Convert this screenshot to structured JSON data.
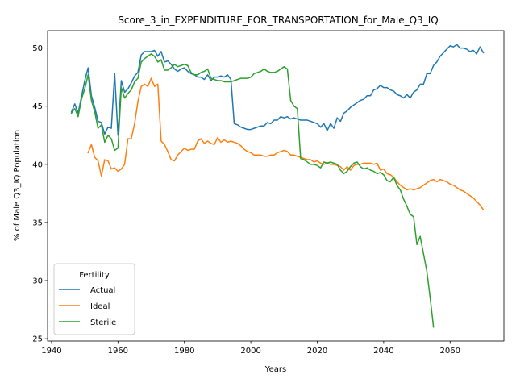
{
  "chart_data": {
    "type": "line",
    "title": "Score_3_in_EXPENDITURE_FOR_TRANSPORTATION_for_Male_Q3_IQ",
    "xlabel": "Years",
    "ylabel": "% of Male Q3_IQ Population",
    "xlim": [
      1938.8,
      2076.2
    ],
    "ylim": [
      24.8,
      51.5
    ],
    "xticks": [
      1940,
      1960,
      1980,
      2000,
      2020,
      2040,
      2060
    ],
    "yticks": [
      25,
      30,
      35,
      40,
      45,
      50
    ],
    "grid": false,
    "legend": {
      "title": "Fertility",
      "position": "lower-left"
    },
    "series": [
      {
        "name": "Actual",
        "color": "#1f77b4",
        "x": [
          1946,
          1947,
          1948,
          1949,
          1950,
          1951,
          1952,
          1953,
          1954,
          1955,
          1956,
          1957,
          1958,
          1959,
          1960,
          1961,
          1962,
          1963,
          1964,
          1965,
          1966,
          1967,
          1968,
          1969,
          1970,
          1971,
          1972,
          1973,
          1974,
          1975,
          1976,
          1977,
          1978,
          1979,
          1980,
          1981,
          1982,
          1983,
          1984,
          1985,
          1986,
          1987,
          1988,
          1989,
          1990,
          1991,
          1992,
          1993,
          1994,
          1995,
          1996,
          1997,
          1998,
          1999,
          2000,
          2001,
          2002,
          2003,
          2004,
          2005,
          2006,
          2007,
          2008,
          2009,
          2010,
          2011,
          2012,
          2013,
          2014,
          2015,
          2016,
          2017,
          2018,
          2019,
          2020,
          2021,
          2022,
          2023,
          2024,
          2025,
          2026,
          2027,
          2028,
          2029,
          2030,
          2031,
          2032,
          2033,
          2034,
          2035,
          2036,
          2037,
          2038,
          2039,
          2040,
          2041,
          2042,
          2043,
          2044,
          2045,
          2046,
          2047,
          2048,
          2049,
          2050,
          2051,
          2052,
          2053,
          2054,
          2055,
          2056,
          2057,
          2058,
          2059,
          2060,
          2061,
          2062,
          2063,
          2064,
          2065,
          2066,
          2067,
          2068,
          2069,
          2070
        ],
        "values": [
          44.5,
          45.2,
          44.4,
          45.8,
          47.2,
          48.3,
          45.9,
          44.9,
          43.7,
          43.6,
          42.6,
          43.2,
          43.1,
          47.8,
          42.5,
          47.2,
          46.2,
          46.5,
          47.0,
          47.6,
          47.9,
          49.4,
          49.7,
          49.7,
          49.7,
          49.8,
          49.3,
          49.7,
          48.8,
          48.9,
          48.6,
          48.2,
          48.0,
          48.2,
          48.3,
          48.0,
          47.8,
          47.7,
          47.5,
          47.5,
          47.3,
          47.7,
          47.2,
          47.5,
          47.5,
          47.6,
          47.5,
          47.7,
          47.3,
          43.5,
          43.4,
          43.2,
          43.1,
          43.0,
          43.0,
          43.1,
          43.2,
          43.3,
          43.3,
          43.6,
          43.5,
          43.8,
          43.8,
          44.1,
          44.0,
          44.1,
          43.9,
          44.0,
          43.9,
          43.8,
          43.8,
          43.8,
          43.7,
          43.6,
          43.5,
          43.2,
          43.5,
          42.9,
          43.5,
          43.1,
          44.0,
          43.7,
          44.4,
          44.6,
          44.9,
          45.1,
          45.3,
          45.5,
          45.6,
          45.9,
          45.9,
          46.4,
          46.5,
          46.8,
          46.6,
          46.6,
          46.4,
          46.3,
          46.0,
          45.9,
          45.7,
          46.0,
          45.7,
          46.2,
          46.4,
          46.9,
          46.9,
          47.8,
          47.8,
          48.5,
          48.8,
          49.3,
          49.6,
          49.9,
          50.2,
          50.1,
          50.3,
          50.0,
          50.0,
          49.9,
          49.7,
          49.8,
          49.5,
          50.1,
          49.6
        ]
      },
      {
        "name": "Ideal",
        "color": "#ff7f0e",
        "x": [
          1951,
          1952,
          1953,
          1954,
          1955,
          1956,
          1957,
          1958,
          1959,
          1960,
          1961,
          1962,
          1963,
          1964,
          1965,
          1966,
          1967,
          1968,
          1969,
          1970,
          1971,
          1972,
          1973,
          1974,
          1975,
          1976,
          1977,
          1978,
          1979,
          1980,
          1981,
          1982,
          1983,
          1984,
          1985,
          1986,
          1987,
          1988,
          1989,
          1990,
          1991,
          1992,
          1993,
          1994,
          1995,
          1996,
          1997,
          1998,
          1999,
          2000,
          2001,
          2002,
          2003,
          2004,
          2005,
          2006,
          2007,
          2008,
          2009,
          2010,
          2011,
          2012,
          2013,
          2014,
          2015,
          2016,
          2017,
          2018,
          2019,
          2020,
          2021,
          2022,
          2023,
          2024,
          2025,
          2026,
          2027,
          2028,
          2029,
          2030,
          2031,
          2032,
          2033,
          2034,
          2035,
          2036,
          2037,
          2038,
          2039,
          2040,
          2041,
          2042,
          2043,
          2044,
          2045,
          2046,
          2047,
          2048,
          2049,
          2050,
          2051,
          2052,
          2053,
          2054,
          2055,
          2056,
          2057,
          2058,
          2059,
          2060,
          2061,
          2062,
          2063,
          2064,
          2065,
          2066,
          2067,
          2068,
          2069,
          2070
        ],
        "values": [
          41.0,
          41.7,
          40.6,
          40.3,
          39.0,
          40.4,
          40.3,
          39.6,
          39.7,
          39.4,
          39.6,
          40.0,
          42.2,
          42.2,
          43.5,
          45.4,
          46.7,
          46.9,
          46.7,
          47.4,
          46.7,
          46.9,
          42.0,
          41.7,
          41.1,
          40.4,
          40.3,
          40.8,
          41.1,
          41.4,
          41.2,
          41.3,
          41.3,
          42.0,
          42.2,
          41.8,
          42.0,
          41.8,
          41.7,
          42.3,
          41.9,
          42.1,
          41.9,
          42.0,
          41.9,
          41.8,
          41.6,
          41.3,
          41.1,
          41.0,
          40.8,
          40.8,
          40.8,
          40.7,
          40.7,
          40.8,
          40.8,
          41.0,
          41.1,
          41.2,
          41.1,
          40.8,
          40.8,
          40.7,
          40.6,
          40.5,
          40.4,
          40.4,
          40.2,
          40.3,
          40.1,
          40.0,
          40.1,
          40.0,
          40.0,
          39.9,
          39.8,
          39.5,
          39.8,
          39.5,
          39.9,
          40.0,
          40.0,
          40.1,
          40.1,
          40.1,
          40.0,
          40.1,
          39.5,
          39.6,
          39.2,
          39.1,
          38.9,
          38.5,
          38.2,
          38.0,
          37.8,
          37.9,
          37.8,
          37.9,
          38.0,
          38.2,
          38.4,
          38.6,
          38.7,
          38.5,
          38.7,
          38.6,
          38.5,
          38.3,
          38.2,
          38.0,
          37.8,
          37.7,
          37.5,
          37.3,
          37.1,
          36.8,
          36.5,
          36.1
        ]
      },
      {
        "name": "Sterile",
        "color": "#2ca02c",
        "x": [
          1946,
          1947,
          1948,
          1949,
          1950,
          1951,
          1952,
          1953,
          1954,
          1955,
          1956,
          1957,
          1958,
          1959,
          1960,
          1961,
          1962,
          1963,
          1964,
          1965,
          1966,
          1967,
          1968,
          1969,
          1970,
          1971,
          1972,
          1973,
          1974,
          1975,
          1976,
          1977,
          1978,
          1979,
          1980,
          1981,
          1982,
          1983,
          1984,
          1985,
          1986,
          1987,
          1988,
          1989,
          1990,
          1991,
          1992,
          1993,
          1994,
          1995,
          1996,
          1997,
          1998,
          1999,
          2000,
          2001,
          2002,
          2003,
          2004,
          2005,
          2006,
          2007,
          2008,
          2009,
          2010,
          2011,
          2012,
          2013,
          2014,
          2015,
          2016,
          2017,
          2018,
          2019,
          2020,
          2021,
          2022,
          2023,
          2024,
          2025,
          2026,
          2027,
          2028,
          2029,
          2030,
          2031,
          2032,
          2033,
          2034,
          2035,
          2036,
          2037,
          2038,
          2039,
          2040,
          2041,
          2042,
          2043,
          2044,
          2045,
          2046,
          2047,
          2048,
          2049,
          2050,
          2051,
          2052,
          2053,
          2054,
          2055
        ],
        "values": [
          44.4,
          44.8,
          44.1,
          45.6,
          46.5,
          47.7,
          45.5,
          44.5,
          43.1,
          43.4,
          41.9,
          42.5,
          42.2,
          41.2,
          41.4,
          46.6,
          45.7,
          46.1,
          46.4,
          47.1,
          47.4,
          48.8,
          49.1,
          49.3,
          49.5,
          49.3,
          48.8,
          49.0,
          48.1,
          48.1,
          48.3,
          48.6,
          48.4,
          48.5,
          48.6,
          48.5,
          47.9,
          47.7,
          47.7,
          47.9,
          48.0,
          48.2,
          47.4,
          47.3,
          47.2,
          47.2,
          47.1,
          47.1,
          47.1,
          47.2,
          47.3,
          47.4,
          47.4,
          47.4,
          47.5,
          47.8,
          47.9,
          48.0,
          48.2,
          48.0,
          47.9,
          47.9,
          48.0,
          48.2,
          48.4,
          48.2,
          45.5,
          45.0,
          44.8,
          40.5,
          40.4,
          40.2,
          40.0,
          40.0,
          39.9,
          39.7,
          40.2,
          40.1,
          40.2,
          40.1,
          40.0,
          39.5,
          39.2,
          39.4,
          39.8,
          40.1,
          40.2,
          39.8,
          39.6,
          39.7,
          39.5,
          39.4,
          39.2,
          39.3,
          39.1,
          38.6,
          38.5,
          38.9,
          38.2,
          37.8,
          37.0,
          36.4,
          35.7,
          35.5,
          33.1,
          33.8,
          32.3,
          30.8,
          28.5,
          26.0
        ]
      }
    ]
  }
}
